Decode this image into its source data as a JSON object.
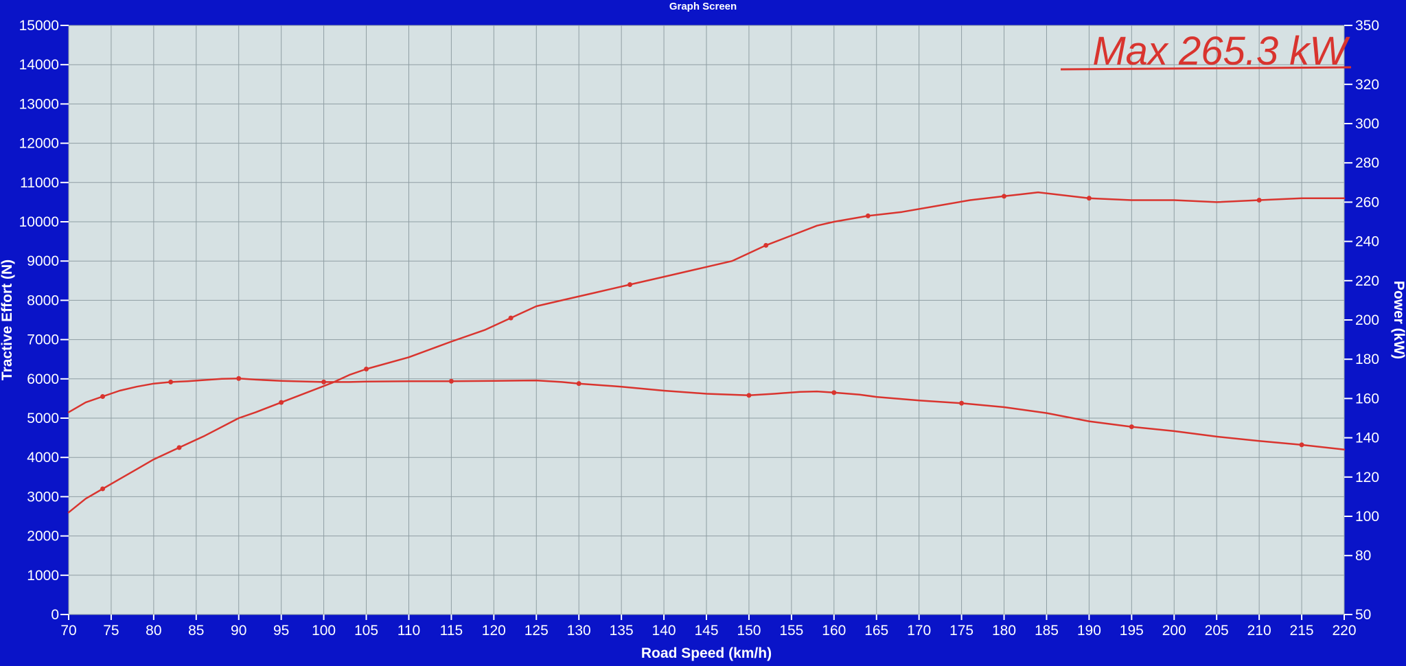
{
  "window": {
    "title": "Graph Screen"
  },
  "chart_data": {
    "type": "line",
    "xlabel": "Road Speed (km/h)",
    "ylabel": "Tractive Effort (N)",
    "y2label": "Power (kW)",
    "xlim": [
      70,
      220
    ],
    "ylim": [
      0,
      15000
    ],
    "y2lim": [
      50,
      350
    ],
    "grid": true,
    "x_ticks": [
      70,
      75,
      80,
      85,
      90,
      95,
      100,
      105,
      110,
      115,
      120,
      125,
      130,
      135,
      140,
      145,
      150,
      155,
      160,
      165,
      170,
      175,
      180,
      185,
      190,
      195,
      200,
      205,
      210,
      215,
      220
    ],
    "y_ticks": [
      0,
      1000,
      2000,
      3000,
      4000,
      5000,
      6000,
      7000,
      8000,
      9000,
      10000,
      11000,
      12000,
      13000,
      14000,
      15000
    ],
    "y2_ticks": [
      50,
      80,
      100,
      120,
      140,
      160,
      180,
      200,
      220,
      240,
      260,
      280,
      300,
      320,
      350
    ],
    "annotation": "Max 265.3 kW",
    "colors": {
      "background": "#0a14c8",
      "plot_area": "#d6e1e3",
      "grid": "#8f9ea3",
      "series": "#d9342e"
    },
    "series": [
      {
        "axis": "left",
        "x": [
          70,
          72,
          74,
          76,
          78,
          80,
          82,
          84,
          86,
          88,
          90,
          92,
          95,
          98,
          100,
          103,
          105,
          110,
          115,
          120,
          125,
          128,
          130,
          135,
          140,
          145,
          150,
          153,
          156,
          158,
          160,
          163,
          165,
          170,
          175,
          180,
          185,
          190,
          195,
          200,
          205,
          210,
          215,
          220
        ],
        "y": [
          5150,
          5400,
          5550,
          5700,
          5800,
          5880,
          5920,
          5940,
          5970,
          6000,
          6010,
          5980,
          5950,
          5930,
          5920,
          5920,
          5930,
          5940,
          5940,
          5950,
          5960,
          5920,
          5880,
          5800,
          5700,
          5620,
          5580,
          5620,
          5670,
          5680,
          5650,
          5600,
          5540,
          5450,
          5380,
          5280,
          5130,
          4920,
          4780,
          4670,
          4530,
          4420,
          4320,
          4200
        ]
      },
      {
        "axis": "right",
        "x": [
          70,
          72,
          74,
          76,
          78,
          80,
          83,
          86,
          90,
          92,
          95,
          98,
          101,
          103,
          105,
          110,
          115,
          119,
          122,
          125,
          128,
          132,
          136,
          140,
          145,
          148,
          152,
          155,
          158,
          160,
          164,
          168,
          172,
          176,
          180,
          182,
          184,
          186,
          190,
          195,
          200,
          205,
          210,
          215,
          220
        ],
        "y": [
          102,
          109,
          114,
          119,
          124,
          129,
          135,
          141,
          150,
          153,
          158,
          163,
          168,
          172,
          175,
          181,
          189,
          195,
          201,
          207,
          210,
          214,
          218,
          222,
          227,
          230,
          238,
          243,
          248,
          250,
          253,
          255,
          258,
          261,
          263,
          264,
          265,
          264,
          262,
          261,
          261,
          260,
          261,
          262,
          262
        ]
      }
    ]
  }
}
